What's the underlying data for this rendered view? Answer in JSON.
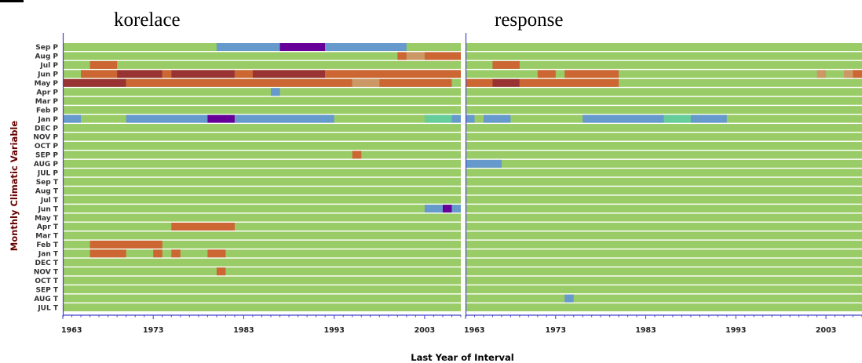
{
  "chart_data": {
    "type": "heatmap",
    "ylabel": "Monthly Climatic Variable",
    "xlabel": "Last Year of Interval",
    "xlim": [
      1963,
      2007
    ],
    "xticks": [
      1963,
      1973,
      1983,
      1993,
      2003
    ],
    "rows": [
      "Sep P",
      "Aug P",
      "Jul P",
      "Jun P",
      "May P",
      "Apr P",
      "Mar P",
      "Feb P",
      "Jan P",
      "DEC P",
      "NOV P",
      "OCT P",
      "SEP P",
      "AUG P",
      "JUL P",
      "Sep T",
      "Aug T",
      "Jul T",
      "Jun T",
      "May T",
      "Apr T",
      "Mar T",
      "Feb T",
      "Jan T",
      "DEC T",
      "NOV T",
      "OCT T",
      "SEP T",
      "AUG T",
      "JUL T"
    ],
    "palette": {
      "none": "#99cc66",
      "weak_pos": "#cc9966",
      "pos": "#cc6633",
      "strong_pos": "#993333",
      "neg": "#6699cc",
      "strong_neg": "#660099",
      "teal": "#66cc99",
      "axis": "#4444cc",
      "grid": "#ffffff"
    },
    "panels": [
      {
        "title": "korelace",
        "segments": [
          {
            "row": "Sep P",
            "start": 1980,
            "end": 1986,
            "level": "neg"
          },
          {
            "row": "Sep P",
            "start": 1987,
            "end": 1991,
            "level": "strong_neg"
          },
          {
            "row": "Sep P",
            "start": 1992,
            "end": 2000,
            "level": "neg"
          },
          {
            "row": "Aug P",
            "start": 2000,
            "end": 2000,
            "level": "pos"
          },
          {
            "row": "Aug P",
            "start": 2001,
            "end": 2002,
            "level": "weak_pos"
          },
          {
            "row": "Aug P",
            "start": 2003,
            "end": 2006,
            "level": "pos"
          },
          {
            "row": "Jul P",
            "start": 1966,
            "end": 1968,
            "level": "pos"
          },
          {
            "row": "Jun P",
            "start": 1965,
            "end": 1968,
            "level": "pos"
          },
          {
            "row": "Jun P",
            "start": 1969,
            "end": 1973,
            "level": "strong_pos"
          },
          {
            "row": "Jun P",
            "start": 1974,
            "end": 1974,
            "level": "pos"
          },
          {
            "row": "Jun P",
            "start": 1975,
            "end": 1981,
            "level": "strong_pos"
          },
          {
            "row": "Jun P",
            "start": 1982,
            "end": 1983,
            "level": "pos"
          },
          {
            "row": "Jun P",
            "start": 1984,
            "end": 1991,
            "level": "strong_pos"
          },
          {
            "row": "Jun P",
            "start": 1992,
            "end": 2006,
            "level": "pos"
          },
          {
            "row": "May P",
            "start": 1963,
            "end": 1969,
            "level": "strong_pos"
          },
          {
            "row": "May P",
            "start": 1970,
            "end": 1994,
            "level": "pos"
          },
          {
            "row": "May P",
            "start": 1995,
            "end": 1997,
            "level": "weak_pos"
          },
          {
            "row": "May P",
            "start": 1998,
            "end": 2005,
            "level": "pos"
          },
          {
            "row": "Apr P",
            "start": 1986,
            "end": 1986,
            "level": "neg"
          },
          {
            "row": "Jan P",
            "start": 1963,
            "end": 1964,
            "level": "neg"
          },
          {
            "row": "Jan P",
            "start": 1970,
            "end": 1978,
            "level": "neg"
          },
          {
            "row": "Jan P",
            "start": 1979,
            "end": 1981,
            "level": "strong_neg"
          },
          {
            "row": "Jan P",
            "start": 1982,
            "end": 1992,
            "level": "neg"
          },
          {
            "row": "Jan P",
            "start": 2003,
            "end": 2005,
            "level": "teal"
          },
          {
            "row": "Jan P",
            "start": 2006,
            "end": 2006,
            "level": "neg"
          },
          {
            "row": "SEP P",
            "start": 1995,
            "end": 1995,
            "level": "pos"
          },
          {
            "row": "Jun T",
            "start": 2003,
            "end": 2004,
            "level": "neg"
          },
          {
            "row": "Jun T",
            "start": 2005,
            "end": 2005,
            "level": "strong_neg"
          },
          {
            "row": "Jun T",
            "start": 2006,
            "end": 2006,
            "level": "neg"
          },
          {
            "row": "Apr T",
            "start": 1975,
            "end": 1981,
            "level": "pos"
          },
          {
            "row": "Feb T",
            "start": 1966,
            "end": 1973,
            "level": "pos"
          },
          {
            "row": "Jan T",
            "start": 1966,
            "end": 1969,
            "level": "pos"
          },
          {
            "row": "Jan T",
            "start": 1973,
            "end": 1973,
            "level": "pos"
          },
          {
            "row": "Jan T",
            "start": 1975,
            "end": 1975,
            "level": "pos"
          },
          {
            "row": "Jan T",
            "start": 1979,
            "end": 1980,
            "level": "pos"
          },
          {
            "row": "NOV T",
            "start": 1980,
            "end": 1980,
            "level": "pos"
          }
        ]
      },
      {
        "title": "response",
        "segments": [
          {
            "row": "Jul P",
            "start": 1966,
            "end": 1968,
            "level": "pos"
          },
          {
            "row": "Jun P",
            "start": 1971,
            "end": 1972,
            "level": "pos"
          },
          {
            "row": "Jun P",
            "start": 1974,
            "end": 1979,
            "level": "pos"
          },
          {
            "row": "Jun P",
            "start": 2002,
            "end": 2002,
            "level": "weak_pos"
          },
          {
            "row": "Jun P",
            "start": 2005,
            "end": 2005,
            "level": "weak_pos"
          },
          {
            "row": "Jun P",
            "start": 2006,
            "end": 2006,
            "level": "pos"
          },
          {
            "row": "May P",
            "start": 1963,
            "end": 1965,
            "level": "pos"
          },
          {
            "row": "May P",
            "start": 1966,
            "end": 1968,
            "level": "strong_pos"
          },
          {
            "row": "May P",
            "start": 1969,
            "end": 1979,
            "level": "pos"
          },
          {
            "row": "Jan P",
            "start": 1963,
            "end": 1963,
            "level": "neg"
          },
          {
            "row": "Jan P",
            "start": 1965,
            "end": 1967,
            "level": "neg"
          },
          {
            "row": "Jan P",
            "start": 1976,
            "end": 1984,
            "level": "neg"
          },
          {
            "row": "Jan P",
            "start": 1985,
            "end": 1987,
            "level": "teal"
          },
          {
            "row": "Jan P",
            "start": 1988,
            "end": 1991,
            "level": "neg"
          },
          {
            "row": "AUG P",
            "start": 1963,
            "end": 1966,
            "level": "neg"
          },
          {
            "row": "AUG T",
            "start": 1974,
            "end": 1974,
            "level": "neg"
          }
        ]
      }
    ]
  }
}
